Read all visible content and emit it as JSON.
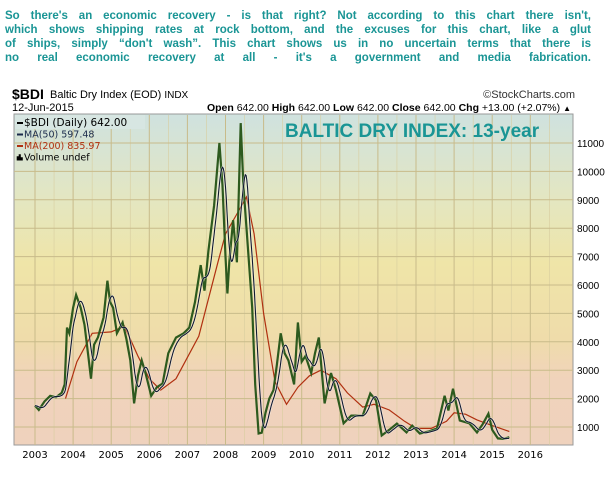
{
  "caption": [
    "So there's an economic recovery - is that right? Not according to this chart there isn't,",
    "which shows shipping rates at rock bottom, and the excuses for this chart, like a glut",
    "of ships, simply “don't wash”. This chart shows us in no uncertain terms that there is",
    "no real economic recovery at all - it's a government and media fabrication."
  ],
  "chart_header": {
    "symbol": "$BDI",
    "name": "Baltic Dry Index (EOD)",
    "exchange": "INDX",
    "credit": "©StockCharts.com",
    "date": "12-Jun-2015",
    "open_label": "Open",
    "open": "642.00",
    "high_label": "High",
    "high": "642.00",
    "low_label": "Low",
    "low": "642.00",
    "close_label": "Close",
    "close": "642.00",
    "chg_label": "Chg",
    "chg": "+13.00 (+2.07%)",
    "chg_icon": "triangle-up"
  },
  "chart_data": {
    "type": "line",
    "title": "BALTIC DRY INDEX: 13-year",
    "legend_placement": "top-left",
    "legend": [
      {
        "label": "$BDI (Daily) 642.00",
        "color": "#000000"
      },
      {
        "label": "MA(50) 597.48",
        "color": "#1a2a4a"
      },
      {
        "label": "MA(200) 835.97",
        "color": "#b03010"
      },
      {
        "label": "Volume undef",
        "color": "#000000"
      }
    ],
    "grid": true,
    "xlim": [
      2002.5,
      2016.9
    ],
    "ylim": [
      0,
      12000
    ],
    "x_ticks": [
      "2003",
      "2004",
      "2005",
      "2006",
      "2007",
      "2008",
      "2009",
      "2010",
      "2011",
      "2012",
      "2013",
      "2014",
      "2015",
      "2016"
    ],
    "y_ticks": [
      1000,
      2000,
      3000,
      4000,
      5000,
      6000,
      7000,
      8000,
      9000,
      10000,
      11000
    ],
    "colors": {
      "price": "#2d5a1e",
      "ma50": "#101830",
      "ma200": "#b03010",
      "title": "#1a9595"
    },
    "series": [
      {
        "name": "$BDI (Daily)",
        "points": [
          [
            2003.0,
            1750
          ],
          [
            2003.1,
            1600
          ],
          [
            2003.25,
            1900
          ],
          [
            2003.4,
            2100
          ],
          [
            2003.55,
            2050
          ],
          [
            2003.7,
            2200
          ],
          [
            2003.78,
            2500
          ],
          [
            2003.84,
            4500
          ],
          [
            2003.9,
            4300
          ],
          [
            2004.0,
            5200
          ],
          [
            2004.08,
            5650
          ],
          [
            2004.2,
            5200
          ],
          [
            2004.3,
            4600
          ],
          [
            2004.4,
            3500
          ],
          [
            2004.47,
            2700
          ],
          [
            2004.55,
            3900
          ],
          [
            2004.65,
            4150
          ],
          [
            2004.8,
            4860
          ],
          [
            2004.9,
            6150
          ],
          [
            2004.97,
            5400
          ],
          [
            2005.05,
            5200
          ],
          [
            2005.15,
            4300
          ],
          [
            2005.3,
            4680
          ],
          [
            2005.4,
            4100
          ],
          [
            2005.5,
            3350
          ],
          [
            2005.6,
            1830
          ],
          [
            2005.7,
            2800
          ],
          [
            2005.8,
            3350
          ],
          [
            2005.9,
            2900
          ],
          [
            2006.05,
            2100
          ],
          [
            2006.2,
            2400
          ],
          [
            2006.35,
            2530
          ],
          [
            2006.5,
            3600
          ],
          [
            2006.7,
            4150
          ],
          [
            2006.9,
            4300
          ],
          [
            2007.05,
            4500
          ],
          [
            2007.2,
            5400
          ],
          [
            2007.35,
            6700
          ],
          [
            2007.45,
            5800
          ],
          [
            2007.55,
            7200
          ],
          [
            2007.7,
            8800
          ],
          [
            2007.84,
            11000
          ],
          [
            2007.92,
            9500
          ],
          [
            2008.0,
            7000
          ],
          [
            2008.05,
            5700
          ],
          [
            2008.1,
            6800
          ],
          [
            2008.2,
            8280
          ],
          [
            2008.3,
            6800
          ],
          [
            2008.4,
            11700
          ],
          [
            2008.47,
            9500
          ],
          [
            2008.55,
            8000
          ],
          [
            2008.7,
            5200
          ],
          [
            2008.78,
            2500
          ],
          [
            2008.87,
            770
          ],
          [
            2008.95,
            800
          ],
          [
            2009.05,
            1500
          ],
          [
            2009.15,
            2000
          ],
          [
            2009.26,
            2300
          ],
          [
            2009.35,
            3200
          ],
          [
            2009.45,
            4300
          ],
          [
            2009.55,
            3600
          ],
          [
            2009.65,
            3350
          ],
          [
            2009.8,
            2500
          ],
          [
            2009.9,
            4680
          ],
          [
            2010.0,
            3300
          ],
          [
            2010.1,
            3500
          ],
          [
            2010.25,
            2900
          ],
          [
            2010.35,
            3600
          ],
          [
            2010.45,
            4150
          ],
          [
            2010.6,
            1830
          ],
          [
            2010.77,
            2900
          ],
          [
            2010.9,
            2300
          ],
          [
            2011.1,
            1130
          ],
          [
            2011.3,
            1400
          ],
          [
            2011.6,
            1400
          ],
          [
            2011.8,
            2180
          ],
          [
            2011.95,
            1940
          ],
          [
            2012.1,
            700
          ],
          [
            2012.3,
            900
          ],
          [
            2012.5,
            1120
          ],
          [
            2012.75,
            810
          ],
          [
            2012.9,
            1050
          ],
          [
            2013.1,
            770
          ],
          [
            2013.35,
            850
          ],
          [
            2013.55,
            950
          ],
          [
            2013.75,
            2100
          ],
          [
            2013.85,
            1580
          ],
          [
            2013.97,
            2350
          ],
          [
            2014.15,
            1230
          ],
          [
            2014.4,
            1130
          ],
          [
            2014.6,
            810
          ],
          [
            2014.75,
            1100
          ],
          [
            2014.9,
            1470
          ],
          [
            2015.0,
            900
          ],
          [
            2015.15,
            600
          ],
          [
            2015.3,
            580
          ],
          [
            2015.45,
            640
          ]
        ]
      },
      {
        "name": "MA(200)",
        "points": [
          [
            2003.8,
            2000
          ],
          [
            2004.1,
            3300
          ],
          [
            2004.5,
            4300
          ],
          [
            2005.0,
            4350
          ],
          [
            2005.35,
            4550
          ],
          [
            2005.7,
            3500
          ],
          [
            2006.0,
            2700
          ],
          [
            2006.3,
            2300
          ],
          [
            2006.7,
            2700
          ],
          [
            2007.3,
            4200
          ],
          [
            2007.8,
            6800
          ],
          [
            2008.0,
            7800
          ],
          [
            2008.3,
            8500
          ],
          [
            2008.55,
            9100
          ],
          [
            2008.75,
            7800
          ],
          [
            2009.0,
            5000
          ],
          [
            2009.3,
            2600
          ],
          [
            2009.6,
            1800
          ],
          [
            2009.9,
            2400
          ],
          [
            2010.2,
            2800
          ],
          [
            2010.5,
            3000
          ],
          [
            2010.9,
            2700
          ],
          [
            2011.2,
            2200
          ],
          [
            2011.6,
            1700
          ],
          [
            2011.9,
            1800
          ],
          [
            2012.3,
            1600
          ],
          [
            2012.7,
            1200
          ],
          [
            2013.0,
            950
          ],
          [
            2013.4,
            950
          ],
          [
            2013.8,
            1200
          ],
          [
            2014.0,
            1500
          ],
          [
            2014.3,
            1450
          ],
          [
            2014.6,
            1250
          ],
          [
            2015.0,
            1050
          ],
          [
            2015.45,
            840
          ]
        ]
      }
    ]
  }
}
